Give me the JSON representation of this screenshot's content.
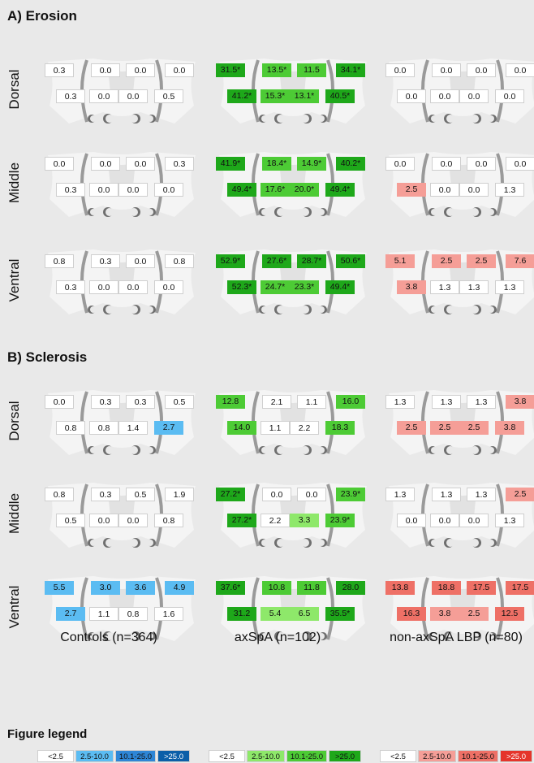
{
  "sections": [
    {
      "title": "A) Erosion",
      "rows": [
        {
          "label": "Dorsal",
          "panels": [
            {
              "top": [
                "0.3",
                "0.0",
                "0.0",
                "0.0"
              ],
              "bottom": [
                "0.3",
                "0.0",
                "0.0",
                "0.5"
              ]
            },
            {
              "top": [
                "31.5*",
                "13.5*",
                "11.5",
                "34.1*"
              ],
              "bottom": [
                "41.2*",
                "15.3*",
                "13.1*",
                "40.5*"
              ]
            },
            {
              "top": [
                "0.0",
                "0.0",
                "0.0",
                "0.0"
              ],
              "bottom": [
                "0.0",
                "0.0",
                "0.0",
                "0.0"
              ]
            }
          ]
        },
        {
          "label": "Middle",
          "panels": [
            {
              "top": [
                "0.0",
                "0.0",
                "0.0",
                "0.3"
              ],
              "bottom": [
                "0.3",
                "0.0",
                "0.0",
                "0.0"
              ]
            },
            {
              "top": [
                "41.9*",
                "18.4*",
                "14.9*",
                "40.2*"
              ],
              "bottom": [
                "49.4*",
                "17.6*",
                "20.0*",
                "49.4*"
              ]
            },
            {
              "top": [
                "0.0",
                "0.0",
                "0.0",
                "0.0"
              ],
              "bottom": [
                "2.5",
                "0.0",
                "0.0",
                "1.3"
              ]
            }
          ]
        },
        {
          "label": "Ventral",
          "panels": [
            {
              "top": [
                "0.8",
                "0.3",
                "0.0",
                "0.8"
              ],
              "bottom": [
                "0.3",
                "0.0",
                "0.0",
                "0.0"
              ]
            },
            {
              "top": [
                "52.9*",
                "27.6*",
                "28.7*",
                "50.6*"
              ],
              "bottom": [
                "52.3*",
                "24.7*",
                "23.3*",
                "49.4*"
              ]
            },
            {
              "top": [
                "5.1",
                "2.5",
                "2.5",
                "7.6"
              ],
              "bottom": [
                "3.8",
                "1.3",
                "1.3",
                "1.3"
              ]
            }
          ]
        }
      ]
    },
    {
      "title": "B) Sclerosis",
      "rows": [
        {
          "label": "Dorsal",
          "panels": [
            {
              "top": [
                "0.0",
                "0.3",
                "0.3",
                "0.5"
              ],
              "bottom": [
                "0.8",
                "0.8",
                "1.4",
                "2.7"
              ]
            },
            {
              "top": [
                "12.8",
                "2.1",
                "1.1",
                "16.0"
              ],
              "bottom": [
                "14.0",
                "1.1",
                "2.2",
                "18.3"
              ]
            },
            {
              "top": [
                "1.3",
                "1.3",
                "1.3",
                "3.8"
              ],
              "bottom": [
                "2.5",
                "2.5",
                "2.5",
                "3.8"
              ]
            }
          ]
        },
        {
          "label": "Middle",
          "panels": [
            {
              "top": [
                "0.8",
                "0.3",
                "0.5",
                "1.9"
              ],
              "bottom": [
                "0.5",
                "0.0",
                "0.0",
                "0.8"
              ]
            },
            {
              "top": [
                "27.2*",
                "0.0",
                "0.0",
                "23.9*"
              ],
              "bottom": [
                "27.2*",
                "2.2",
                "3.3",
                "23.9*"
              ]
            },
            {
              "top": [
                "1.3",
                "1.3",
                "1.3",
                "2.5"
              ],
              "bottom": [
                "0.0",
                "0.0",
                "0.0",
                "1.3"
              ]
            }
          ]
        },
        {
          "label": "Ventral",
          "panels": [
            {
              "top": [
                "5.5",
                "3.0",
                "3.6",
                "4.9"
              ],
              "bottom": [
                "2.7",
                "1.1",
                "0.8",
                "1.6"
              ]
            },
            {
              "top": [
                "37.6*",
                "10.8",
                "11.8",
                "28.0"
              ],
              "bottom": [
                "31.2",
                "5.4",
                "6.5",
                "35.5*"
              ]
            },
            {
              "top": [
                "13.8",
                "18.8",
                "17.5",
                "17.5"
              ],
              "bottom": [
                "16.3",
                "3.8",
                "2.5",
                "12.5"
              ]
            }
          ]
        }
      ]
    }
  ],
  "groups": [
    "Controls (n=364)",
    "axSpA (n=102)",
    "non-axSpA LBP (n=80)"
  ],
  "legend": {
    "title": "Figure legend",
    "bins": [
      "<2.5",
      "2.5-10.0",
      "10.1-25.0",
      ">25.0"
    ]
  },
  "palettes": {
    "controls": [
      "#ffffff",
      "#5bbcf2",
      "#2e86d6",
      "#0b5fa8"
    ],
    "axspa": [
      "#ffffff",
      "#8ee86a",
      "#4dcb35",
      "#1ea81a"
    ],
    "nonaxspa": [
      "#ffffff",
      "#f59e97",
      "#ee7066",
      "#e5352b"
    ]
  }
}
